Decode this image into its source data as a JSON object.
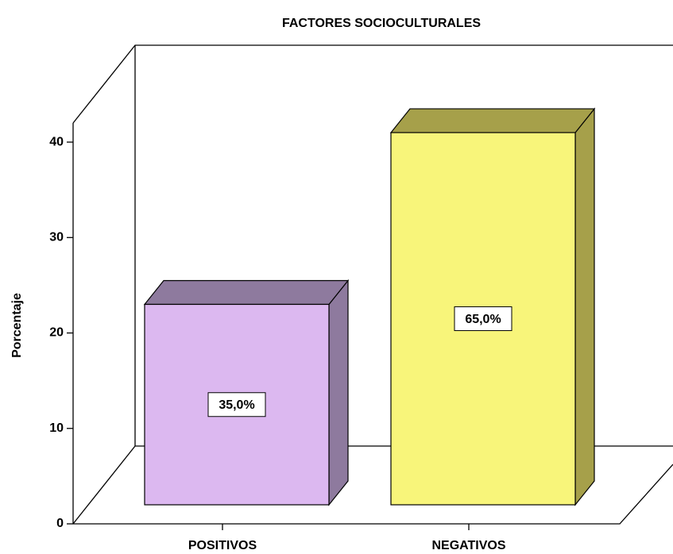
{
  "chart_data": {
    "type": "bar3d",
    "title": "FACTORES SOCIOCULTURALES",
    "y_label": "Porcentaje",
    "categories": [
      "POSITIVOS",
      "NEGATIVOS"
    ],
    "values": [
      21,
      39
    ],
    "value_labels": [
      "35,0%",
      "65,0%"
    ],
    "colors": [
      "#dcb8f0",
      "#f8f57a"
    ],
    "side_colors": [
      "#8e7a9e",
      "#a6a04a"
    ],
    "ylim": [
      0,
      42
    ],
    "yticks": [
      0,
      10,
      20,
      30,
      40
    ]
  }
}
